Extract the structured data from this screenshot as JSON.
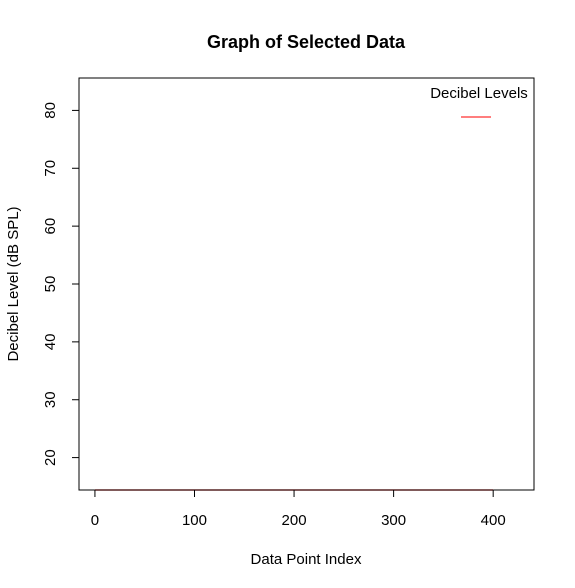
{
  "chart_data": {
    "type": "line",
    "title": "Graph of Selected Data",
    "xlabel": "Data Point Index",
    "ylabel": "Decibel Level (dB SPL)",
    "xlim": [
      -16,
      441
    ],
    "ylim": [
      14.4,
      85.6
    ],
    "x_ticks": [
      0,
      100,
      200,
      300,
      400
    ],
    "y_ticks": [
      20,
      30,
      40,
      50,
      60,
      70,
      80
    ],
    "series": [
      {
        "name": "Decibel Levels",
        "color": "#ff6b6b",
        "x": [
          0,
          400
        ],
        "y": [
          14.4,
          14.4
        ]
      }
    ],
    "legend": {
      "title": "Decibel Levels",
      "position": "top-right"
    },
    "grid": false
  }
}
